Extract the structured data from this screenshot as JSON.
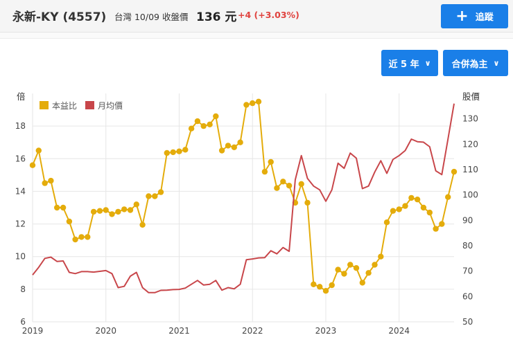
{
  "header": {
    "name": "永新-KY (4557)",
    "meta": "台灣 10/09 收盤價",
    "price": "136 元",
    "change": "+4 (+3.03%)",
    "follow_label": "追蹤",
    "change_color": "#e0433f"
  },
  "controls": {
    "range_label": "近 5 年",
    "mode_label": "合併為主"
  },
  "chart_data": {
    "type": "line",
    "left_axis": {
      "title": "倍",
      "range": [
        6,
        20
      ],
      "ticks": [
        6,
        8,
        10,
        12,
        14,
        16,
        18
      ]
    },
    "right_axis": {
      "title": "股價",
      "range": [
        50,
        140
      ],
      "ticks": [
        50,
        60,
        70,
        80,
        90,
        100,
        110,
        120,
        130
      ]
    },
    "x_labels": [
      "2019",
      "2020",
      "2021",
      "2022",
      "2023",
      "2024"
    ],
    "x_range": [
      2019.0,
      2024.8
    ],
    "grid": true,
    "legend_position": "top-left",
    "series": [
      {
        "name": "本益比",
        "axis": "left",
        "color": "#e4ac0b",
        "markers": true,
        "points": [
          [
            2019.0,
            15.6
          ],
          [
            2019.083,
            16.5
          ],
          [
            2019.167,
            14.5
          ],
          [
            2019.25,
            14.65
          ],
          [
            2019.333,
            13.0
          ],
          [
            2019.417,
            13.0
          ],
          [
            2019.5,
            12.15
          ],
          [
            2019.583,
            11.05
          ],
          [
            2019.667,
            11.2
          ],
          [
            2019.75,
            11.2
          ],
          [
            2019.833,
            12.75
          ],
          [
            2019.917,
            12.8
          ],
          [
            2020.0,
            12.85
          ],
          [
            2020.083,
            12.6
          ],
          [
            2020.167,
            12.75
          ],
          [
            2020.25,
            12.9
          ],
          [
            2020.333,
            12.85
          ],
          [
            2020.417,
            13.2
          ],
          [
            2020.5,
            11.95
          ],
          [
            2020.583,
            13.7
          ],
          [
            2020.667,
            13.7
          ],
          [
            2020.75,
            13.95
          ],
          [
            2020.833,
            16.35
          ],
          [
            2020.917,
            16.4
          ],
          [
            2021.0,
            16.45
          ],
          [
            2021.083,
            16.55
          ],
          [
            2021.167,
            17.85
          ],
          [
            2021.25,
            18.3
          ],
          [
            2021.333,
            18.0
          ],
          [
            2021.417,
            18.1
          ],
          [
            2021.5,
            18.6
          ],
          [
            2021.583,
            16.5
          ],
          [
            2021.667,
            16.8
          ],
          [
            2021.75,
            16.7
          ],
          [
            2021.833,
            17.0
          ],
          [
            2021.917,
            19.3
          ],
          [
            2022.0,
            19.4
          ],
          [
            2022.083,
            19.5
          ],
          [
            2022.167,
            15.2
          ],
          [
            2022.25,
            15.8
          ],
          [
            2022.333,
            14.2
          ],
          [
            2022.417,
            14.6
          ],
          [
            2022.5,
            14.35
          ],
          [
            2022.583,
            13.3
          ],
          [
            2022.667,
            14.45
          ],
          [
            2022.75,
            13.3
          ],
          [
            2022.833,
            8.3
          ],
          [
            2022.917,
            8.15
          ],
          [
            2023.0,
            7.9
          ],
          [
            2023.083,
            8.25
          ],
          [
            2023.167,
            9.2
          ],
          [
            2023.25,
            8.95
          ],
          [
            2023.333,
            9.5
          ],
          [
            2023.417,
            9.3
          ],
          [
            2023.5,
            8.4
          ],
          [
            2023.583,
            9.0
          ],
          [
            2023.667,
            9.5
          ],
          [
            2023.75,
            10.0
          ],
          [
            2023.833,
            12.1
          ],
          [
            2023.917,
            12.8
          ],
          [
            2024.0,
            12.9
          ],
          [
            2024.083,
            13.1
          ],
          [
            2024.167,
            13.6
          ],
          [
            2024.25,
            13.5
          ],
          [
            2024.333,
            13.0
          ],
          [
            2024.417,
            12.7
          ],
          [
            2024.5,
            11.7
          ],
          [
            2024.583,
            12.0
          ],
          [
            2024.667,
            13.65
          ],
          [
            2024.75,
            15.2
          ]
        ]
      },
      {
        "name": "月均價",
        "axis": "right",
        "color": "#c8464a",
        "markers": false,
        "points": [
          [
            2019.0,
            68.5
          ],
          [
            2019.083,
            71.5
          ],
          [
            2019.167,
            75.0
          ],
          [
            2019.25,
            75.5
          ],
          [
            2019.333,
            73.8
          ],
          [
            2019.417,
            74.0
          ],
          [
            2019.5,
            69.5
          ],
          [
            2019.583,
            69.0
          ],
          [
            2019.667,
            69.8
          ],
          [
            2019.75,
            69.8
          ],
          [
            2019.833,
            69.6
          ],
          [
            2019.917,
            69.9
          ],
          [
            2020.0,
            70.2
          ],
          [
            2020.083,
            69.0
          ],
          [
            2020.167,
            63.5
          ],
          [
            2020.25,
            64.0
          ],
          [
            2020.333,
            68.0
          ],
          [
            2020.417,
            69.5
          ],
          [
            2020.5,
            63.5
          ],
          [
            2020.583,
            61.5
          ],
          [
            2020.667,
            61.5
          ],
          [
            2020.75,
            62.4
          ],
          [
            2020.833,
            62.5
          ],
          [
            2020.917,
            62.7
          ],
          [
            2021.0,
            62.8
          ],
          [
            2021.083,
            63.3
          ],
          [
            2021.167,
            64.8
          ],
          [
            2021.25,
            66.3
          ],
          [
            2021.333,
            64.5
          ],
          [
            2021.417,
            64.8
          ],
          [
            2021.5,
            66.3
          ],
          [
            2021.583,
            62.5
          ],
          [
            2021.667,
            63.5
          ],
          [
            2021.75,
            63.0
          ],
          [
            2021.833,
            64.8
          ],
          [
            2021.917,
            74.5
          ],
          [
            2022.0,
            74.8
          ],
          [
            2022.083,
            75.2
          ],
          [
            2022.167,
            75.3
          ],
          [
            2022.25,
            78.0
          ],
          [
            2022.333,
            76.8
          ],
          [
            2022.417,
            79.3
          ],
          [
            2022.5,
            77.8
          ],
          [
            2022.583,
            106.0
          ],
          [
            2022.667,
            115.5
          ],
          [
            2022.75,
            106.5
          ],
          [
            2022.833,
            103.5
          ],
          [
            2022.917,
            102.0
          ],
          [
            2023.0,
            97.5
          ],
          [
            2023.083,
            102.0
          ],
          [
            2023.167,
            112.5
          ],
          [
            2023.25,
            110.5
          ],
          [
            2023.333,
            116.5
          ],
          [
            2023.417,
            114.5
          ],
          [
            2023.5,
            102.5
          ],
          [
            2023.583,
            103.5
          ],
          [
            2023.667,
            109.0
          ],
          [
            2023.75,
            113.5
          ],
          [
            2023.833,
            108.5
          ],
          [
            2023.917,
            114.0
          ],
          [
            2024.0,
            115.5
          ],
          [
            2024.083,
            117.5
          ],
          [
            2024.167,
            122.0
          ],
          [
            2024.25,
            121.0
          ],
          [
            2024.333,
            120.8
          ],
          [
            2024.417,
            119.0
          ],
          [
            2024.5,
            109.5
          ],
          [
            2024.583,
            108.0
          ],
          [
            2024.667,
            122.0
          ],
          [
            2024.75,
            136.0
          ]
        ]
      }
    ]
  }
}
